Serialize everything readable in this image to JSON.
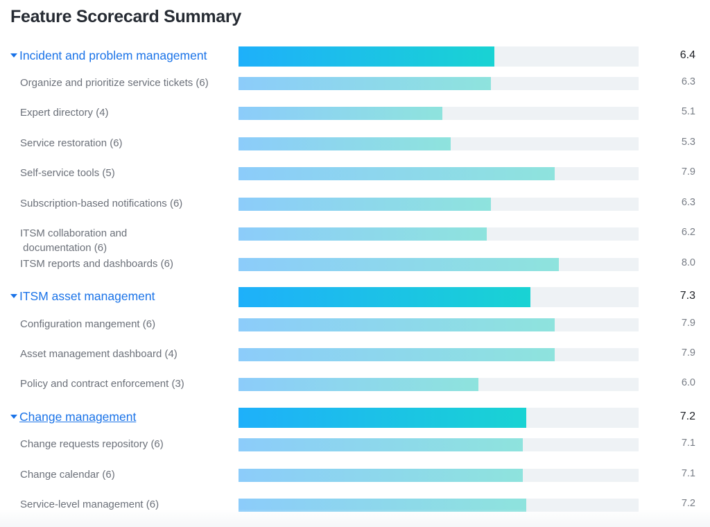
{
  "title": "Feature Scorecard Summary",
  "colors": {
    "group_gradient": [
      "#1eb0fa",
      "#19d3d3"
    ],
    "item_gradient": [
      "#8cccfa",
      "#8ee3dd"
    ],
    "track": "#eef2f5",
    "link": "#1a73e8"
  },
  "chart_data": {
    "type": "bar",
    "orientation": "horizontal",
    "title": "Feature Scorecard Summary",
    "xlim": [
      0,
      10
    ],
    "groups": [
      {
        "label": "Incident and problem management",
        "score": 6.4,
        "score_text": "6.4",
        "expanded": true,
        "underlined": false,
        "items": [
          {
            "label": "Organize and prioritize service tickets (6)",
            "score": 6.3,
            "score_text": "6.3"
          },
          {
            "label": "Expert directory (4)",
            "score": 5.1,
            "score_text": "5.1"
          },
          {
            "label": "Service restoration (6)",
            "score": 5.3,
            "score_text": "5.3"
          },
          {
            "label": "Self-service tools (5)",
            "score": 7.9,
            "score_text": "7.9"
          },
          {
            "label": "Subscription-based notifications (6)",
            "score": 6.3,
            "score_text": "6.3"
          },
          {
            "label": "ITSM collaboration and documentation (6)",
            "score": 6.2,
            "score_text": "6.2"
          },
          {
            "label": "ITSM reports and dashboards (6)",
            "score": 8.0,
            "score_text": "8.0"
          }
        ]
      },
      {
        "label": "ITSM asset management",
        "score": 7.3,
        "score_text": "7.3",
        "expanded": true,
        "underlined": false,
        "items": [
          {
            "label": "Configuration mangement (6)",
            "score": 7.9,
            "score_text": "7.9"
          },
          {
            "label": "Asset management dashboard (4)",
            "score": 7.9,
            "score_text": "7.9"
          },
          {
            "label": "Policy and contract enforcement (3)",
            "score": 6.0,
            "score_text": "6.0"
          }
        ]
      },
      {
        "label": "Change management",
        "score": 7.2,
        "score_text": "7.2",
        "expanded": true,
        "underlined": true,
        "items": [
          {
            "label": "Change requests repository (6)",
            "score": 7.1,
            "score_text": "7.1"
          },
          {
            "label": "Change calendar (6)",
            "score": 7.1,
            "score_text": "7.1"
          },
          {
            "label": "Service-level management (6)",
            "score": 7.2,
            "score_text": "7.2"
          }
        ]
      }
    ]
  }
}
